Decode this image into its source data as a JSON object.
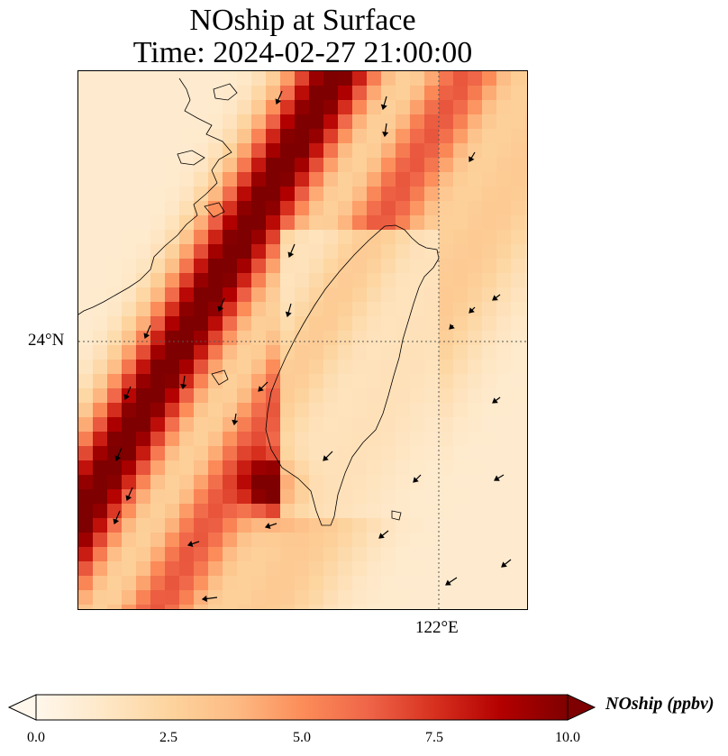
{
  "title_line1": "NOship at Surface",
  "title_line2": "Time: 2024-02-27 21:00:00",
  "map": {
    "lat_gridline_label": "24°N",
    "lon_gridline_label": "122°E",
    "gridline_color": "#555555"
  },
  "colorbar": {
    "label": "NOship (ppbv)",
    "ticks": [
      "0.0",
      "2.5",
      "5.0",
      "7.5",
      "10.0"
    ],
    "min": 0,
    "max": 10,
    "extend": "both",
    "colormap": "OrRd",
    "colors": [
      "#fff7ec",
      "#fee8c8",
      "#fdd49e",
      "#fdbb84",
      "#fc8d59",
      "#ef6548",
      "#d7301f",
      "#b30000",
      "#7f0000"
    ]
  },
  "field": {
    "description_visible": "shaded NOship concentration field",
    "max_visible_ppbv": 10,
    "high_band": "northwest coastal plume along Taiwan Strait",
    "hotspot": "southwest coast of Taiwan"
  },
  "icons": {
    "wind_vector": "arrow-icon"
  }
}
